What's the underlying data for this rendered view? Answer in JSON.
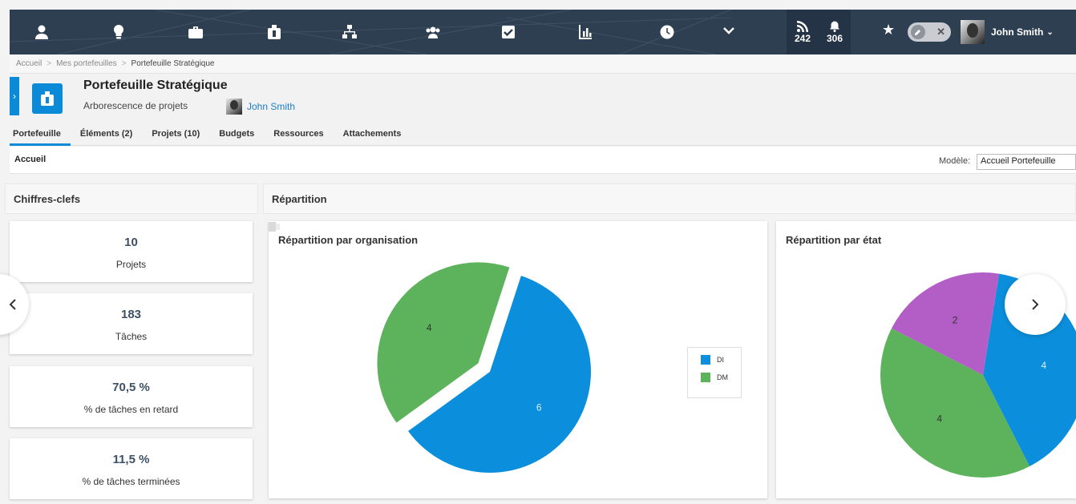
{
  "nav": {
    "icons": [
      "user-icon",
      "lightbulb-icon",
      "briefcase-icon",
      "portfolio-icon",
      "org-chart-icon",
      "team-icon",
      "checkbox-icon",
      "report-icon",
      "clock-icon",
      "chevron-down-icon"
    ],
    "feed_count": "242",
    "notification_count": "306",
    "user_name": "John Smith"
  },
  "breadcrumb": {
    "items": [
      "Accueil",
      "Mes portefeuilles",
      "Portefeuille Stratégique"
    ]
  },
  "header": {
    "title": "Portefeuille Stratégique",
    "subtitle": "Arborescence de projets",
    "owner": "John Smith"
  },
  "tabs": [
    "Portefeuille",
    "Éléments (2)",
    "Projets (10)",
    "Budgets",
    "Ressources",
    "Attachements"
  ],
  "subheader": {
    "title": "Accueil",
    "model_label": "Modèle:",
    "model_value": "Accueil Portefeuille"
  },
  "sections": {
    "kpis": "Chiffres-clefs",
    "repartition": "Répartition"
  },
  "kpis": [
    {
      "value": "10",
      "label": "Projets"
    },
    {
      "value": "183",
      "label": "Tâches"
    },
    {
      "value": "70,5 %",
      "label": "% de tâches en retard"
    },
    {
      "value": "11,5 %",
      "label": "% de tâches terminées"
    }
  ],
  "colors": {
    "accent": "#0b8ad8",
    "topbar": "#2e3f52",
    "kpi_value": "#3d5066"
  },
  "chart_data": [
    {
      "type": "pie",
      "title": "Répartition par organisation",
      "categories": [
        "DI",
        "DM"
      ],
      "values": [
        6,
        4
      ],
      "colors": [
        "#0b8fdc",
        "#5db35c"
      ],
      "legend": "right",
      "exploded": "DM"
    },
    {
      "type": "pie",
      "title": "Répartition par état",
      "categories": [
        "",
        "",
        ""
      ],
      "values": [
        4,
        4,
        2
      ],
      "colors": [
        "#0b8fdc",
        "#5db35c",
        "#b25ec6"
      ],
      "legend": "none"
    }
  ]
}
